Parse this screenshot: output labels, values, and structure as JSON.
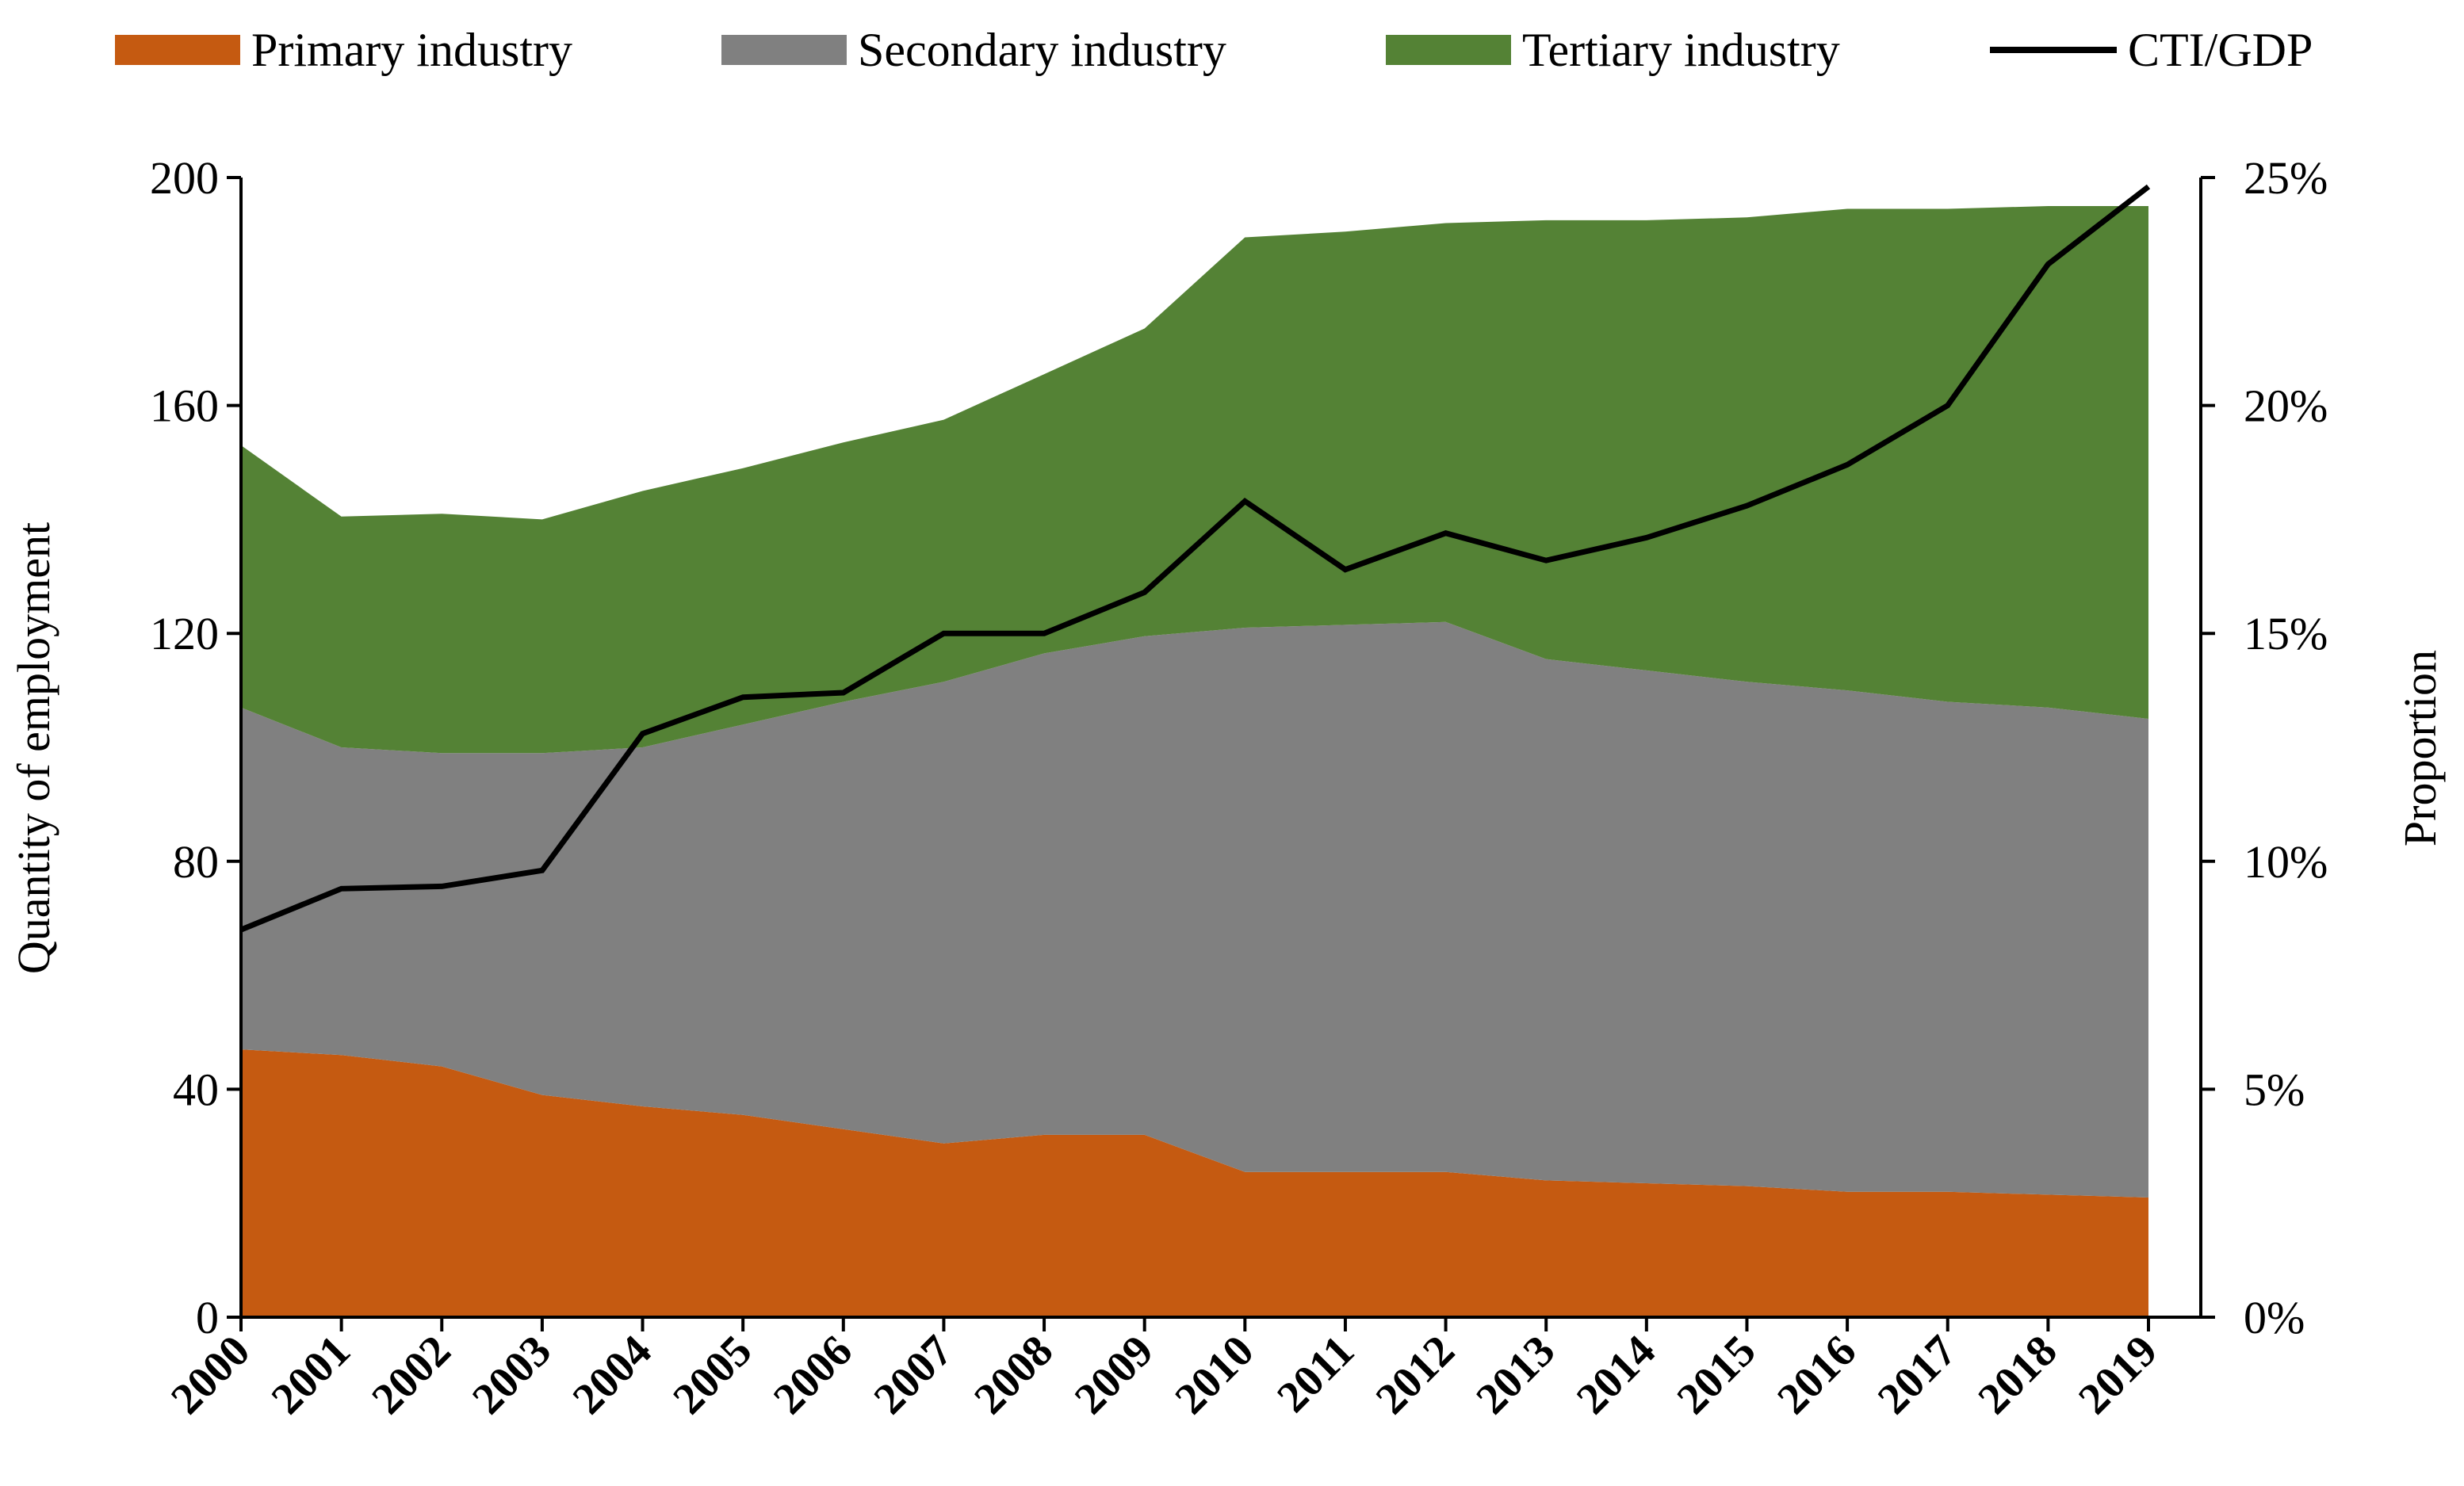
{
  "chart_data": {
    "type": "area",
    "categories": [
      "2000",
      "2001",
      "2002",
      "2003",
      "2004",
      "2005",
      "2006",
      "2007",
      "2008",
      "2009",
      "2010",
      "2011",
      "2012",
      "2013",
      "2014",
      "2015",
      "2016",
      "2017",
      "2018",
      "2019"
    ],
    "stacked": true,
    "series": [
      {
        "name": "Primary industry",
        "color": "#c55a11",
        "values": [
          47,
          46,
          44,
          39,
          37,
          35.5,
          33,
          30.5,
          32,
          32,
          25.5,
          25.5,
          25.5,
          24,
          23.5,
          23,
          22,
          22,
          21.5,
          21
        ]
      },
      {
        "name": "Secondary industry",
        "color": "#808080",
        "values": [
          60,
          54,
          55,
          60,
          63,
          68.5,
          75,
          81,
          84.5,
          87.5,
          95.5,
          96,
          96.5,
          91.5,
          90,
          88.5,
          88,
          86,
          85.5,
          84
        ]
      },
      {
        "name": "Tertiary industry",
        "color": "#548235",
        "values": [
          46,
          40.5,
          42,
          41,
          45,
          45,
          45.5,
          46,
          49,
          54,
          68.5,
          69,
          70,
          77,
          79,
          81.5,
          84.5,
          86.5,
          88,
          90
        ]
      }
    ],
    "line_series": {
      "name": "CTI/GDP",
      "color": "#000000",
      "axis": "right",
      "values": [
        0.085,
        0.094,
        0.0945,
        0.098,
        0.128,
        0.136,
        0.137,
        0.15,
        0.15,
        0.159,
        0.179,
        0.164,
        0.172,
        0.166,
        0.171,
        0.178,
        0.187,
        0.2,
        0.231,
        0.248
      ]
    },
    "ylabel": "Quantity of employment",
    "y2label": "Proportion",
    "ylim": [
      0,
      200
    ],
    "yticks": [
      "0",
      "40",
      "80",
      "120",
      "160",
      "200"
    ],
    "y2lim": [
      0,
      0.25
    ],
    "y2ticks": [
      "0%",
      "5%",
      "10%",
      "15%",
      "20%",
      "25%"
    ],
    "grid": false,
    "legend_position": "top"
  }
}
